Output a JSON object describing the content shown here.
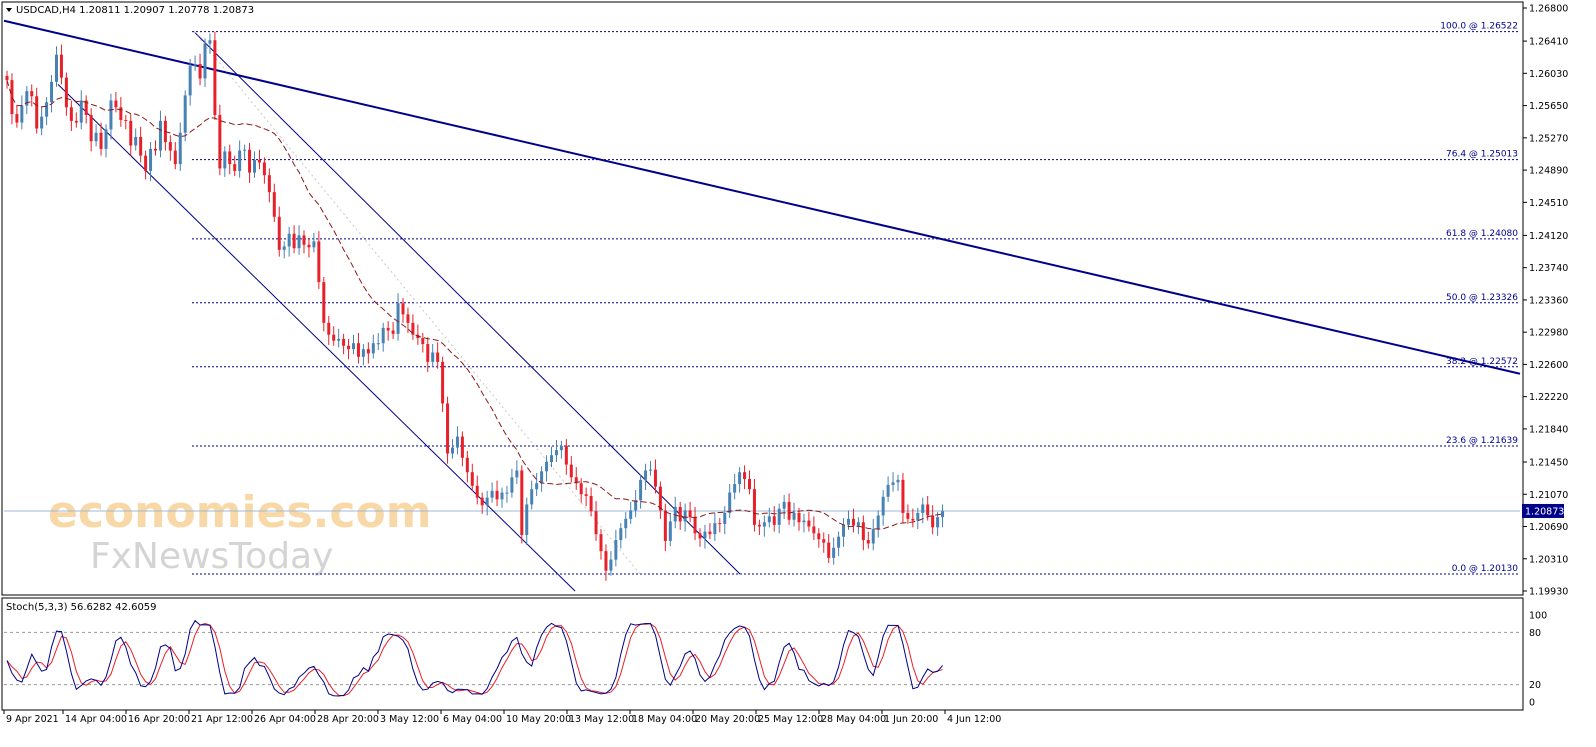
{
  "header": {
    "symbol_line": "USDCAD,H4  1.20811 1.20907 1.20778 1.20873",
    "stoch_line": "Stoch(5,3,3) 56.6282 42.6059"
  },
  "watermark": {
    "line1": "economies.com",
    "line2": "FxNewsToday"
  },
  "colors": {
    "bull": "#4682B4",
    "bear": "#E8202A",
    "ma": "#8B1A1A",
    "trendline": "#00008B",
    "channel": "#00008B",
    "fib": "#00008B",
    "stoch_main": "#00008B",
    "stoch_signal": "#E8202A",
    "price_tag_bg": "#00008B"
  },
  "chart_data": [
    {
      "type": "candlestick",
      "symbol": "USDCAD",
      "timeframe": "H4",
      "ohlc_current": {
        "open": 1.20811,
        "high": 1.20907,
        "low": 1.20778,
        "close": 1.20873
      },
      "current_price": "1.20873",
      "ylim": [
        1.1993,
        1.268
      ],
      "y_ticks": [
        "1.26800",
        "1.26410",
        "1.26030",
        "1.25650",
        "1.25270",
        "1.24890",
        "1.24510",
        "1.24120",
        "1.23740",
        "1.23360",
        "1.22980",
        "1.22600",
        "1.22220",
        "1.21840",
        "1.21450",
        "1.21070",
        "1.20690",
        "1.20310",
        "1.19930"
      ],
      "x_ticks": [
        "9 Apr 2021",
        "14 Apr 04:00",
        "16 Apr 20:00",
        "21 Apr 12:00",
        "26 Apr 04:00",
        "28 Apr 20:00",
        "3 May 12:00",
        "6 May 04:00",
        "10 May 20:00",
        "13 May 12:00",
        "18 May 04:00",
        "20 May 20:00",
        "25 May 12:00",
        "28 May 04:00",
        "1 Jun 20:00",
        "4 Jun 12:00"
      ],
      "fibonacci": [
        {
          "label": "100.0 @ 1.26522",
          "level": 1.26522
        },
        {
          "label": "76.4 @ 1.25013",
          "level": 1.25013
        },
        {
          "label": "61.8 @ 1.24080",
          "level": 1.2408
        },
        {
          "label": "50.0 @ 1.23326",
          "level": 1.23326
        },
        {
          "label": "38.2 @ 1.22572",
          "level": 1.22572
        },
        {
          "label": "23.6 @ 1.21639",
          "level": 1.21639
        },
        {
          "label": "0.0 @ 1.20130",
          "level": 1.2013
        }
      ],
      "close_series": [
        1.2595,
        1.2555,
        1.2545,
        1.2565,
        1.2582,
        1.2576,
        1.2538,
        1.2552,
        1.2569,
        1.2593,
        1.2625,
        1.2598,
        1.2563,
        1.2547,
        1.2545,
        1.2571,
        1.2554,
        1.2523,
        1.2533,
        1.2514,
        1.2537,
        1.2571,
        1.2563,
        1.2548,
        1.2547,
        1.2518,
        1.2528,
        1.2506,
        1.2488,
        1.2514,
        1.2512,
        1.2547,
        1.2522,
        1.2512,
        1.2496,
        1.2533,
        1.2577,
        1.2612,
        1.2614,
        1.2597,
        1.2638,
        1.2642,
        1.2554,
        1.2491,
        1.2511,
        1.2496,
        1.2488,
        1.2512,
        1.2513,
        1.2486,
        1.2501,
        1.2498,
        1.2483,
        1.2463,
        1.2434,
        1.2395,
        1.2399,
        1.2414,
        1.2397,
        1.2412,
        1.2401,
        1.2398,
        1.2405,
        1.2357,
        1.2309,
        1.2295,
        1.2288,
        1.229,
        1.2282,
        1.2278,
        1.2285,
        1.2269,
        1.2278,
        1.2273,
        1.2285,
        1.2285,
        1.2303,
        1.23,
        1.2296,
        1.2332,
        1.2319,
        1.2309,
        1.2295,
        1.2291,
        1.2284,
        1.2263,
        1.2274,
        1.2263,
        1.2214,
        1.2155,
        1.2162,
        1.2175,
        1.215,
        1.2133,
        1.2117,
        1.2103,
        1.2094,
        1.2103,
        1.2111,
        1.2101,
        1.2109,
        1.2109,
        1.2127,
        1.2135,
        1.2059,
        1.2095,
        1.2113,
        1.212,
        1.2134,
        1.2145,
        1.2153,
        1.2159,
        1.2164,
        1.2142,
        1.2127,
        1.212,
        1.2107,
        1.2105,
        1.2087,
        1.206,
        1.204,
        1.2017,
        1.203,
        1.2053,
        1.2067,
        1.2078,
        1.2088,
        1.21,
        1.2124,
        1.2135,
        1.2136,
        1.2116,
        1.2088,
        1.2052,
        1.2075,
        1.2092,
        1.2075,
        1.2088,
        1.208,
        1.2061,
        1.2055,
        1.2063,
        1.206,
        1.2073,
        1.2072,
        1.2085,
        1.2109,
        1.2119,
        1.2133,
        1.2125,
        1.2113,
        1.2071,
        1.2069,
        1.2074,
        1.2081,
        1.2071,
        1.209,
        1.2098,
        1.2077,
        1.2085,
        1.2074,
        1.2076,
        1.2069,
        1.2061,
        1.2054,
        1.205,
        1.2032,
        1.2044,
        1.2057,
        1.2071,
        1.2078,
        1.207,
        1.2074,
        1.2053,
        1.2049,
        1.2066,
        1.2082,
        1.2104,
        1.2118,
        1.2121,
        1.2124,
        1.2085,
        1.2078,
        1.2076,
        1.2085,
        1.2095,
        1.2082,
        1.2068,
        1.208,
        1.2087
      ]
    },
    {
      "type": "line",
      "name": "Stoch(5,3,3)",
      "main_value": "56.6282",
      "signal_value": "42.6059",
      "ylim": [
        0,
        100
      ],
      "y_ticks": [
        "100",
        "80",
        "20",
        "0"
      ],
      "levels": [
        80,
        20
      ]
    }
  ]
}
